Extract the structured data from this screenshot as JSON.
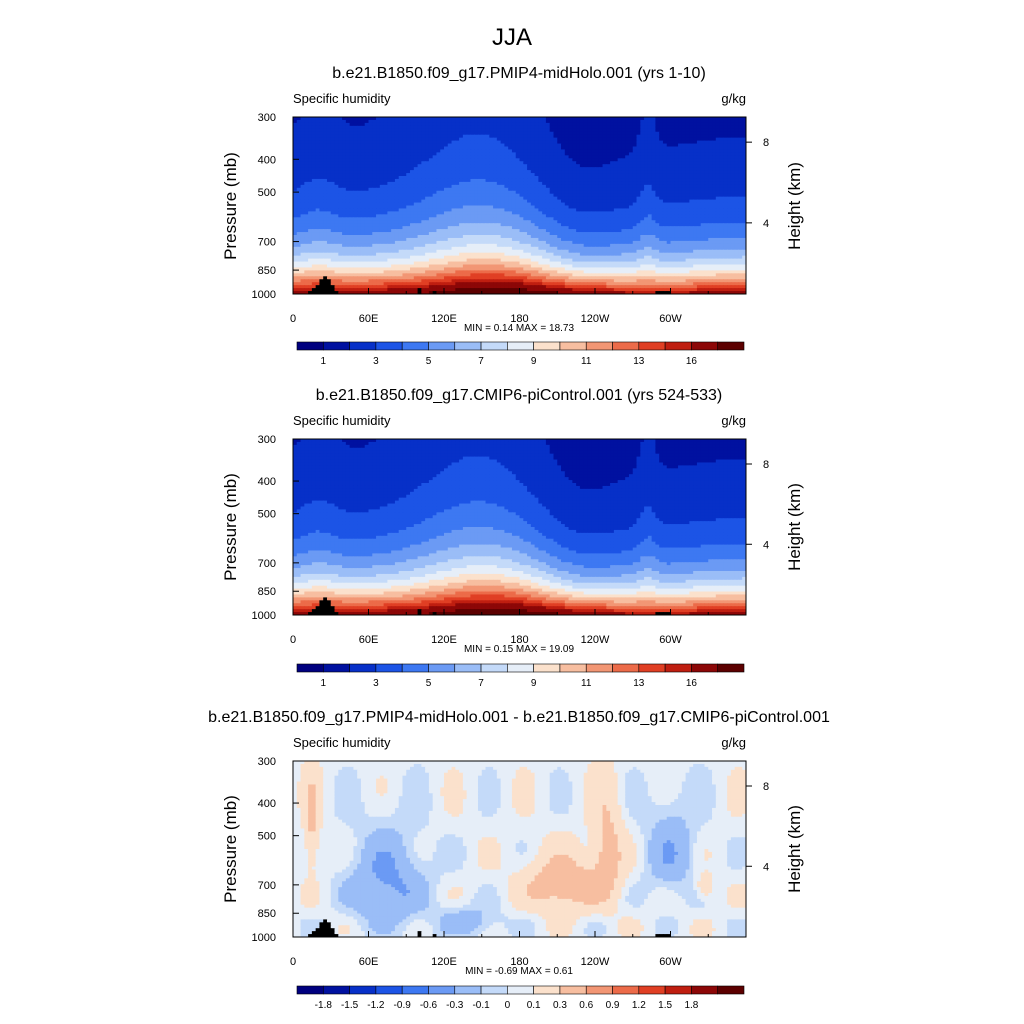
{
  "figure_title": "JJA",
  "chart_data": [
    {
      "type": "heatmap",
      "title": "b.e21.B1850.f09_g17.PMIP4-midHolo.001 (yrs 1-10)",
      "variable": "Specific humidity",
      "units": "g/kg",
      "ylabel": "Pressure (mb)",
      "y2label": "Height (km)",
      "y_ticks": [
        300,
        400,
        500,
        700,
        850,
        1000
      ],
      "y2_ticks": [
        8,
        4
      ],
      "x_ticks": [
        "0",
        "60E",
        "120E",
        "180",
        "120W",
        "60W"
      ],
      "x_tick_lons": [
        0,
        60,
        120,
        180,
        240,
        300
      ],
      "xlim": [
        0,
        360
      ],
      "stats": "MIN =   0.14  MAX =  18.73",
      "cbar_labels": [
        "1",
        "3",
        "5",
        "7",
        "9",
        "11",
        "13",
        "16"
      ],
      "levels": [
        0.5,
        1,
        2,
        3,
        4,
        5,
        6,
        7,
        8,
        9,
        10,
        11,
        12,
        13,
        14,
        16
      ],
      "field": "mean"
    },
    {
      "type": "heatmap",
      "title": "b.e21.B1850.f09_g17.CMIP6-piControl.001 (yrs 524-533)",
      "variable": "Specific humidity",
      "units": "g/kg",
      "ylabel": "Pressure (mb)",
      "y2label": "Height (km)",
      "y_ticks": [
        300,
        400,
        500,
        700,
        850,
        1000
      ],
      "y2_ticks": [
        8,
        4
      ],
      "x_ticks": [
        "0",
        "60E",
        "120E",
        "180",
        "120W",
        "60W"
      ],
      "x_tick_lons": [
        0,
        60,
        120,
        180,
        240,
        300
      ],
      "xlim": [
        0,
        360
      ],
      "stats": "MIN =   0.15  MAX =  19.09",
      "cbar_labels": [
        "1",
        "3",
        "5",
        "7",
        "9",
        "11",
        "13",
        "16"
      ],
      "levels": [
        0.5,
        1,
        2,
        3,
        4,
        5,
        6,
        7,
        8,
        9,
        10,
        11,
        12,
        13,
        14,
        16
      ],
      "field": "mean"
    },
    {
      "type": "heatmap",
      "title": "b.e21.B1850.f09_g17.PMIP4-midHolo.001 - b.e21.B1850.f09_g17.CMIP6-piControl.001",
      "variable": "Specific humidity",
      "units": "g/kg",
      "ylabel": "Pressure (mb)",
      "y2label": "Height (km)",
      "y_ticks": [
        300,
        400,
        500,
        700,
        850,
        1000
      ],
      "y2_ticks": [
        8,
        4
      ],
      "x_ticks": [
        "0",
        "60E",
        "120E",
        "180",
        "120W",
        "60W"
      ],
      "x_tick_lons": [
        0,
        60,
        120,
        180,
        240,
        300
      ],
      "xlim": [
        0,
        360
      ],
      "stats": "MIN =  -0.69  MAX =   0.61",
      "cbar_labels": [
        "-1.8",
        "-1.5",
        "-1.2",
        "-0.9",
        "-0.6",
        "-0.3",
        "-0.1",
        "0",
        "0.1",
        "0.3",
        "0.6",
        "0.9",
        "1.2",
        "1.5",
        "1.8"
      ],
      "levels": [
        -1.8,
        -1.5,
        -1.2,
        -0.9,
        -0.6,
        -0.3,
        -0.1,
        0,
        0.1,
        0.3,
        0.6,
        0.9,
        1.2,
        1.5,
        1.8
      ],
      "field": "diff"
    }
  ],
  "colors": {
    "palette": [
      "#00007f",
      "#0011a0",
      "#0730c8",
      "#1c54e6",
      "#3d78f2",
      "#6b9af4",
      "#9abdf7",
      "#c4daf9",
      "#e6eef8",
      "#fbe1cc",
      "#f7bea0",
      "#f29674",
      "#ec6b49",
      "#e03f24",
      "#bf1e10",
      "#8c0707",
      "#5c0000"
    ],
    "topography": "#000000"
  }
}
